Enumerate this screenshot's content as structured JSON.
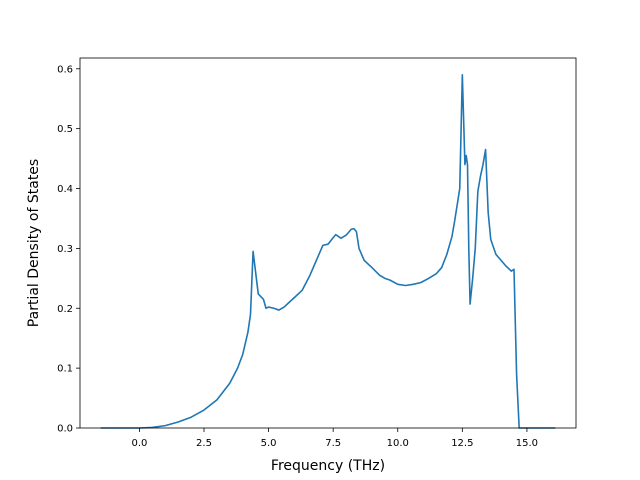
{
  "chart_data": {
    "type": "line",
    "title": "",
    "xlabel": "Frequency (THz)",
    "ylabel": "Partial Density of States",
    "xlim": [
      -2.3,
      16.9
    ],
    "ylim": [
      0.0,
      0.618
    ],
    "grid": false,
    "legend": "none",
    "xticks": [
      0.0,
      2.5,
      5.0,
      7.5,
      10.0,
      12.5,
      15.0
    ],
    "xtick_labels": [
      "0.0",
      "2.5",
      "5.0",
      "7.5",
      "10.0",
      "12.5",
      "15.0"
    ],
    "yticks": [
      0.0,
      0.1,
      0.2,
      0.3,
      0.4,
      0.5,
      0.6
    ],
    "ytick_labels": [
      "0.0",
      "0.1",
      "0.2",
      "0.3",
      "0.4",
      "0.5",
      "0.6"
    ],
    "series": [
      {
        "color": "#1f77b4",
        "x": [
          -1.5,
          -1.0,
          0.0,
          0.5,
          1.0,
          1.5,
          2.0,
          2.5,
          3.0,
          3.5,
          3.8,
          4.0,
          4.2,
          4.3,
          4.4,
          4.6,
          4.8,
          4.9,
          5.0,
          5.2,
          5.4,
          5.6,
          5.8,
          6.0,
          6.3,
          6.6,
          6.9,
          7.1,
          7.3,
          7.5,
          7.6,
          7.8,
          8.0,
          8.2,
          8.3,
          8.4,
          8.5,
          8.7,
          9.0,
          9.3,
          9.5,
          9.7,
          10.0,
          10.3,
          10.6,
          10.9,
          11.2,
          11.5,
          11.7,
          11.9,
          12.1,
          12.2,
          12.4,
          12.5,
          12.6,
          12.65,
          12.7,
          12.75,
          12.8,
          12.9,
          13.0,
          13.1,
          13.2,
          13.3,
          13.4,
          13.5,
          13.6,
          13.8,
          14.0,
          14.2,
          14.4,
          14.5,
          14.6,
          14.7,
          14.8,
          16.1
        ],
        "y": [
          0.0,
          0.0,
          0.0,
          0.001,
          0.004,
          0.01,
          0.018,
          0.03,
          0.047,
          0.075,
          0.1,
          0.123,
          0.16,
          0.19,
          0.295,
          0.224,
          0.215,
          0.2,
          0.202,
          0.2,
          0.197,
          0.202,
          0.21,
          0.218,
          0.23,
          0.255,
          0.285,
          0.305,
          0.307,
          0.318,
          0.323,
          0.317,
          0.322,
          0.332,
          0.333,
          0.328,
          0.3,
          0.28,
          0.268,
          0.255,
          0.25,
          0.247,
          0.24,
          0.238,
          0.24,
          0.243,
          0.25,
          0.258,
          0.268,
          0.29,
          0.32,
          0.345,
          0.4,
          0.59,
          0.44,
          0.455,
          0.44,
          0.3,
          0.207,
          0.25,
          0.3,
          0.395,
          0.42,
          0.44,
          0.465,
          0.36,
          0.315,
          0.29,
          0.28,
          0.27,
          0.262,
          0.265,
          0.09,
          0.0,
          0.0,
          0.0
        ]
      }
    ]
  }
}
